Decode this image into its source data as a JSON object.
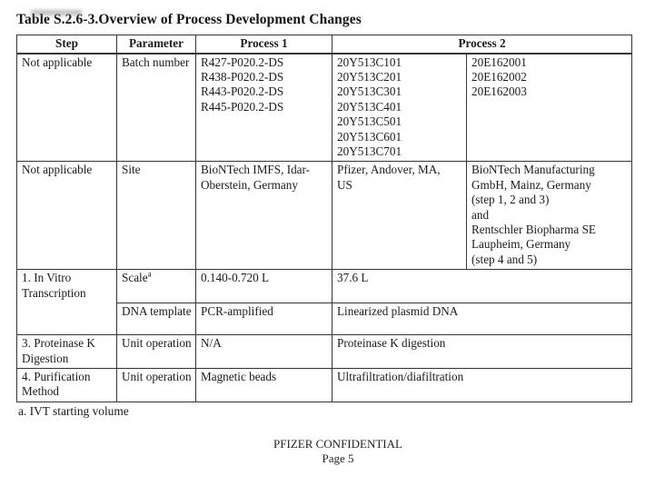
{
  "title": "Table S.2.6-3.Overview of Process Development Changes",
  "table": {
    "headers": {
      "step": "Step",
      "parameter": "Parameter",
      "process1": "Process 1",
      "process2": "Process 2"
    },
    "rows": {
      "batch": {
        "step": "Not applicable",
        "parameter": "Batch number",
        "process1": "R427-P020.2-DS\nR438-P020.2-DS\nR443-P020.2-DS\nR445-P020.2-DS",
        "process2a": "20Y513C101\n20Y513C201\n20Y513C301\n20Y513C401\n20Y513C501\n20Y513C601\n20Y513C701",
        "process2b": "20E162001\n20E162002\n20E162003"
      },
      "site": {
        "step": "Not applicable",
        "parameter": "Site",
        "process1": "BioNTech IMFS, Idar-\nOberstein, Germany",
        "process2a": "Pfizer, Andover, MA,\nUS",
        "process2b": "BioNTech Manufacturing\nGmbH, Mainz, Germany\n(step 1, 2 and 3)\nand\nRentschler Biopharma SE\nLaupheim, Germany\n(step 4 and 5)"
      },
      "scale": {
        "step": "1. In Vitro Transcription",
        "parameter": "Scale",
        "parameter_sup": "a",
        "process1": "0.140-0.720 L",
        "process2": "37.6 L"
      },
      "dna": {
        "parameter": "DNA template",
        "process1": "PCR-amplified",
        "process2": "Linearized plasmid DNA"
      },
      "proteinase": {
        "step": "3. Proteinase K Digestion",
        "parameter": "Unit operation",
        "process1": "N/A",
        "process2": "Proteinase K digestion"
      },
      "purification": {
        "step": "4. Purification Method",
        "parameter": "Unit operation",
        "process1": "Magnetic beads",
        "process2": "Ultrafiltration/diafiltration"
      }
    }
  },
  "footnote": "a. IVT starting volume",
  "footer": {
    "confidential": "PFIZER CONFIDENTIAL",
    "page": "Page 5"
  }
}
